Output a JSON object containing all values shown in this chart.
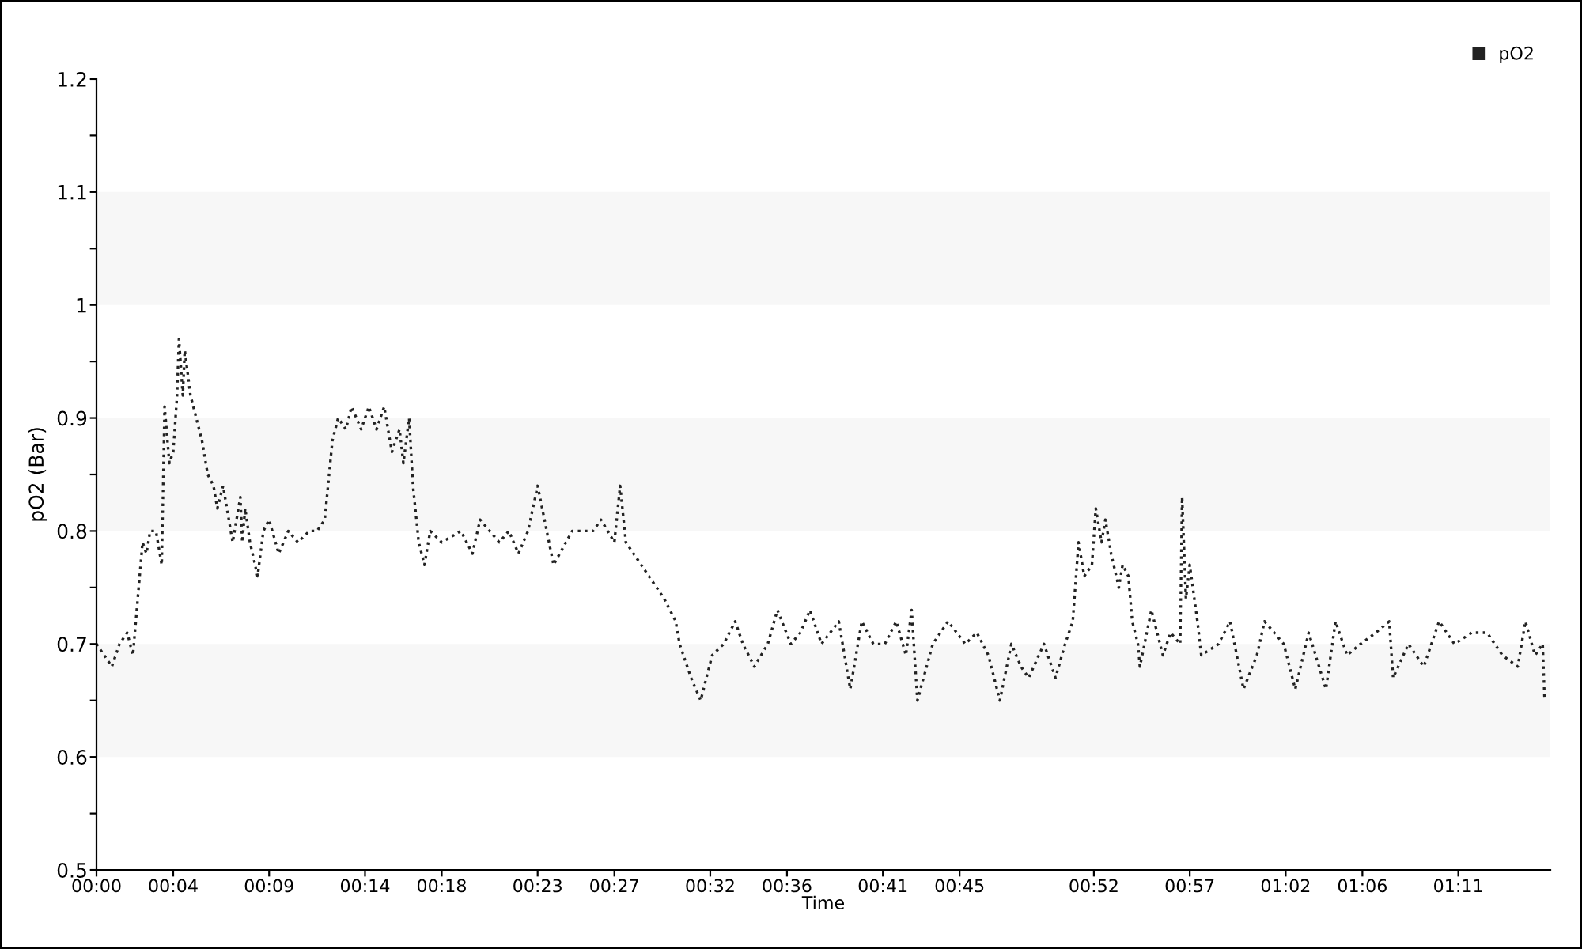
{
  "chart_data": {
    "type": "line",
    "xlabel": "Time",
    "ylabel": "pO2 (Bar)",
    "xlim": [
      0,
      75.8
    ],
    "ylim": [
      0.5,
      1.2
    ],
    "xticks": [
      {
        "value": 0,
        "label": "00:00"
      },
      {
        "value": 4,
        "label": "00:04"
      },
      {
        "value": 9,
        "label": "00:09"
      },
      {
        "value": 14,
        "label": "00:14"
      },
      {
        "value": 18,
        "label": "00:18"
      },
      {
        "value": 23,
        "label": "00:23"
      },
      {
        "value": 27,
        "label": "00:27"
      },
      {
        "value": 32,
        "label": "00:32"
      },
      {
        "value": 36,
        "label": "00:36"
      },
      {
        "value": 41,
        "label": "00:41"
      },
      {
        "value": 45,
        "label": "00:45"
      },
      {
        "value": 52,
        "label": "00:52"
      },
      {
        "value": 57,
        "label": "00:57"
      },
      {
        "value": 62,
        "label": "01:02"
      },
      {
        "value": 66,
        "label": "01:06"
      },
      {
        "value": 71,
        "label": "01:11"
      }
    ],
    "yticks": [
      0.5,
      {
        "value": 0.55,
        "label": null
      },
      0.6,
      {
        "value": 0.65,
        "label": null
      },
      0.7,
      {
        "value": 0.75,
        "label": null
      },
      0.8,
      {
        "value": 0.85,
        "label": null
      },
      0.9,
      {
        "value": 0.95,
        "label": null
      },
      1,
      {
        "value": 1.05,
        "label": null
      },
      1.1,
      {
        "value": 1.15,
        "label": null
      },
      1.2
    ],
    "bands": [
      {
        "axis": "y",
        "from": 0.6,
        "to": 0.7,
        "color": "#f7f7f7"
      },
      {
        "axis": "y",
        "from": 0.8,
        "to": 0.9,
        "color": "#f7f7f7"
      },
      {
        "axis": "y",
        "from": 1.0,
        "to": 1.1,
        "color": "#f7f7f7"
      }
    ],
    "grid": false,
    "legend": "top right",
    "line_style": "dotted",
    "marker": "none",
    "series": [
      {
        "name": "pO2",
        "color": "#222222",
        "x": [
          0,
          0.4,
          0.8,
          1.2,
          1.6,
          1.9,
          2.2,
          2.4,
          2.6,
          2.8,
          3.1,
          3.3,
          3.4,
          3.55,
          3.8,
          4.0,
          4.2,
          4.3,
          4.5,
          4.6,
          4.9,
          5.2,
          5.5,
          5.8,
          6.1,
          6.3,
          6.6,
          6.8,
          7.1,
          7.3,
          7.5,
          7.6,
          7.75,
          8.0,
          8.4,
          8.7,
          9.0,
          9.5,
          10.0,
          10.5,
          11.1,
          11.5,
          11.9,
          12.3,
          12.6,
          13.0,
          13.3,
          13.8,
          14.2,
          14.6,
          15.0,
          15.4,
          15.8,
          16.0,
          16.3,
          16.5,
          16.8,
          17.1,
          17.4,
          18.0,
          19.0,
          19.6,
          20.0,
          21.0,
          21.5,
          22.0,
          22.5,
          23.0,
          23.83,
          24.8,
          25.9,
          26.3,
          27.0,
          27.3,
          27.6,
          29.2,
          29.6,
          30.2,
          30.4,
          31.0,
          31.5,
          32.1,
          32.7,
          33.3,
          33.7,
          34.3,
          35.0,
          35.5,
          36.2,
          36.7,
          37.2,
          37.8,
          38.7,
          39.3,
          39.9,
          40.5,
          41.1,
          41.7,
          42.2,
          42.5,
          42.8,
          43.6,
          44.4,
          45.3,
          45.9,
          46.5,
          47.1,
          47.7,
          48.2,
          48.6,
          49.4,
          50.0,
          50.5,
          50.9,
          51.2,
          51.5,
          51.9,
          52.1,
          52.4,
          52.6,
          52.9,
          53.3,
          53.5,
          53.8,
          54.0,
          54.3,
          54.4,
          55.0,
          55.6,
          56.0,
          56.5,
          56.6,
          56.8,
          57.0,
          57.4,
          57.6,
          58.5,
          59.1,
          59.8,
          60.5,
          60.9,
          61.9,
          62.5,
          63.2,
          64.1,
          64.6,
          65.2,
          65.9,
          66.7,
          67.4,
          67.6,
          68.4,
          69.2,
          70.0,
          70.8,
          71.7,
          72.5,
          73.3,
          74.1,
          74.5,
          75.0,
          75.4,
          75.5
        ],
        "values": [
          0.7,
          0.69,
          0.68,
          0.7,
          0.71,
          0.69,
          0.75,
          0.79,
          0.78,
          0.8,
          0.8,
          0.78,
          0.77,
          0.91,
          0.86,
          0.87,
          0.92,
          0.97,
          0.92,
          0.96,
          0.92,
          0.9,
          0.88,
          0.85,
          0.84,
          0.82,
          0.84,
          0.82,
          0.79,
          0.81,
          0.83,
          0.79,
          0.82,
          0.79,
          0.76,
          0.8,
          0.81,
          0.78,
          0.8,
          0.79,
          0.8,
          0.8,
          0.81,
          0.88,
          0.9,
          0.89,
          0.91,
          0.89,
          0.91,
          0.89,
          0.91,
          0.87,
          0.89,
          0.86,
          0.9,
          0.84,
          0.79,
          0.77,
          0.8,
          0.79,
          0.8,
          0.78,
          0.81,
          0.79,
          0.8,
          0.78,
          0.8,
          0.84,
          0.77,
          0.8,
          0.8,
          0.81,
          0.79,
          0.84,
          0.79,
          0.75,
          0.74,
          0.72,
          0.7,
          0.67,
          0.65,
          0.69,
          0.7,
          0.72,
          0.7,
          0.68,
          0.7,
          0.73,
          0.7,
          0.71,
          0.73,
          0.7,
          0.72,
          0.66,
          0.72,
          0.7,
          0.7,
          0.72,
          0.69,
          0.73,
          0.65,
          0.7,
          0.72,
          0.7,
          0.71,
          0.69,
          0.65,
          0.7,
          0.68,
          0.67,
          0.7,
          0.67,
          0.7,
          0.72,
          0.79,
          0.76,
          0.77,
          0.82,
          0.79,
          0.81,
          0.78,
          0.75,
          0.77,
          0.76,
          0.72,
          0.7,
          0.68,
          0.73,
          0.69,
          0.71,
          0.7,
          0.83,
          0.74,
          0.77,
          0.72,
          0.69,
          0.7,
          0.72,
          0.66,
          0.69,
          0.72,
          0.7,
          0.66,
          0.71,
          0.66,
          0.72,
          0.69,
          0.7,
          0.71,
          0.72,
          0.67,
          0.7,
          0.68,
          0.72,
          0.7,
          0.71,
          0.71,
          0.69,
          0.68,
          0.72,
          0.69,
          0.7,
          0.65
        ]
      }
    ]
  }
}
